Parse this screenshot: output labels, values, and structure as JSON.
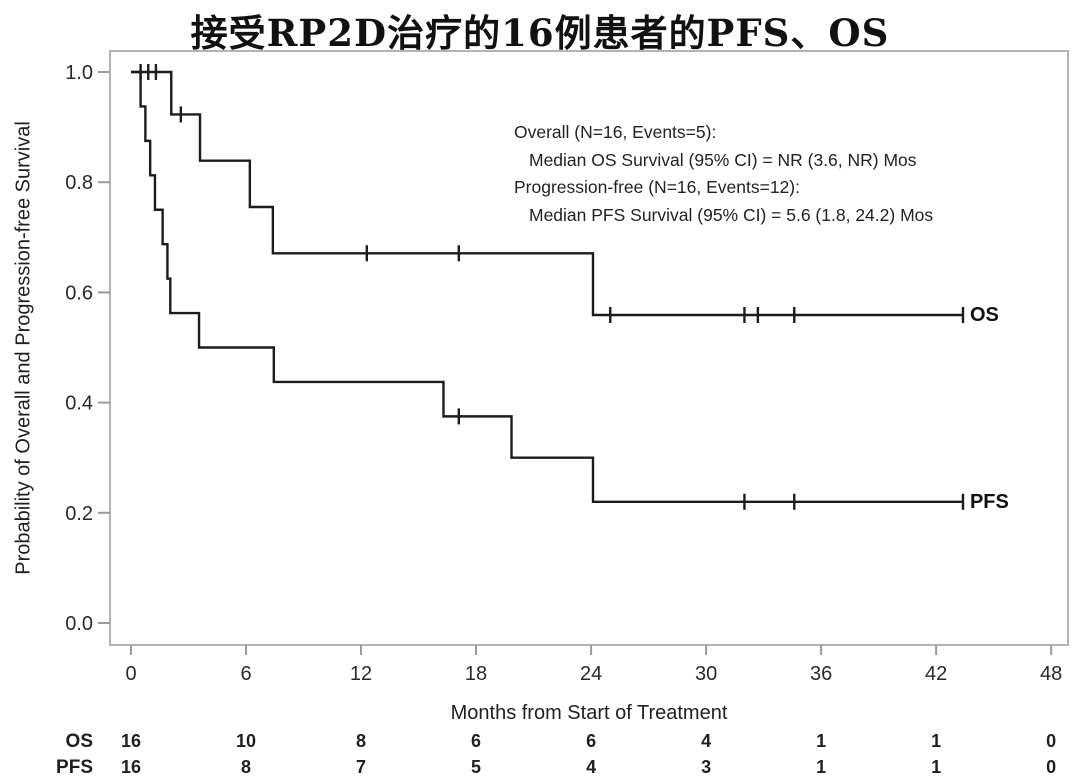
{
  "colors": {
    "curve": "#1c1c1c",
    "frame": "#b3b3b3",
    "tick": "#9a9a9a",
    "text": "#1f1f1f",
    "background": "#ffffff"
  },
  "chart_data": {
    "type": "line",
    "subtype": "kaplan-meier-step",
    "title": "接受RP2D治疗的16例患者的PFS、OS",
    "xlabel": "Months from Start of Treatment",
    "ylabel": "Probability of Overall and Progression-free Survival",
    "xlim": [
      0,
      48
    ],
    "ylim": [
      0.0,
      1.0
    ],
    "grid": false,
    "legend_position": "curve-end-labels",
    "xticks": [
      {
        "label": "0",
        "value": 0
      },
      {
        "label": "6",
        "value": 6
      },
      {
        "label": "12",
        "value": 12
      },
      {
        "label": "18",
        "value": 18
      },
      {
        "label": "24",
        "value": 24
      },
      {
        "label": "30",
        "value": 30
      },
      {
        "label": "36",
        "value": 36
      },
      {
        "label": "42",
        "value": 42
      },
      {
        "label": "48",
        "value": 48
      }
    ],
    "yticks": [
      {
        "label": "1.0",
        "value": 1.0
      },
      {
        "label": "0.8",
        "value": 0.8
      },
      {
        "label": "0.6",
        "value": 0.6
      },
      {
        "label": "0.4",
        "value": 0.4
      },
      {
        "label": "0.2",
        "value": 0.2
      },
      {
        "label": "0.0",
        "value": 0.0
      }
    ],
    "annotation": [
      "Overall (N=16, Events=5):",
      "Median OS Survival (95% CI) = NR (3.6, NR) Mos",
      "Progression-free (N=16, Events=12):",
      "Median PFS Survival (95% CI) = 5.6 (1.8, 24.2) Mos"
    ],
    "series": [
      {
        "name": "OS",
        "n": 16,
        "events": 5,
        "steps": [
          [
            0,
            1.0
          ],
          [
            2.1,
            0.923
          ],
          [
            3.6,
            0.839
          ],
          [
            6.2,
            0.755
          ],
          [
            7.4,
            0.671
          ],
          [
            24.1,
            0.559
          ]
        ],
        "end_month": 43.4,
        "censors": [
          [
            0.5,
            1.0
          ],
          [
            0.9,
            1.0
          ],
          [
            1.3,
            1.0
          ],
          [
            2.6,
            0.923
          ],
          [
            12.3,
            0.671
          ],
          [
            17.1,
            0.671
          ],
          [
            25.0,
            0.559
          ],
          [
            32.0,
            0.559
          ],
          [
            32.7,
            0.559
          ],
          [
            34.6,
            0.559
          ],
          [
            43.4,
            0.559
          ]
        ]
      },
      {
        "name": "PFS",
        "n": 16,
        "events": 12,
        "steps": [
          [
            0,
            1.0
          ],
          [
            0.5,
            0.9375
          ],
          [
            0.75,
            0.875
          ],
          [
            1.0,
            0.8125
          ],
          [
            1.25,
            0.75
          ],
          [
            1.65,
            0.6875
          ],
          [
            1.9,
            0.625
          ],
          [
            2.05,
            0.5625
          ],
          [
            3.55,
            0.5
          ],
          [
            7.45,
            0.4375
          ],
          [
            16.3,
            0.375
          ],
          [
            19.85,
            0.3
          ],
          [
            24.1,
            0.22
          ]
        ],
        "end_month": 43.4,
        "censors": [
          [
            17.1,
            0.375
          ],
          [
            32.0,
            0.22
          ],
          [
            34.6,
            0.22
          ],
          [
            43.4,
            0.22
          ]
        ]
      }
    ],
    "at_risk": {
      "times": [
        0,
        6,
        12,
        18,
        24,
        30,
        36,
        42,
        48
      ],
      "rows": [
        {
          "label": "OS",
          "counts": [
            "16",
            "10",
            "8",
            "6",
            "6",
            "4",
            "1",
            "1",
            "0"
          ]
        },
        {
          "label": "PFS",
          "counts": [
            "16",
            "8",
            "7",
            "5",
            "4",
            "3",
            "1",
            "1",
            "0"
          ]
        }
      ]
    }
  }
}
